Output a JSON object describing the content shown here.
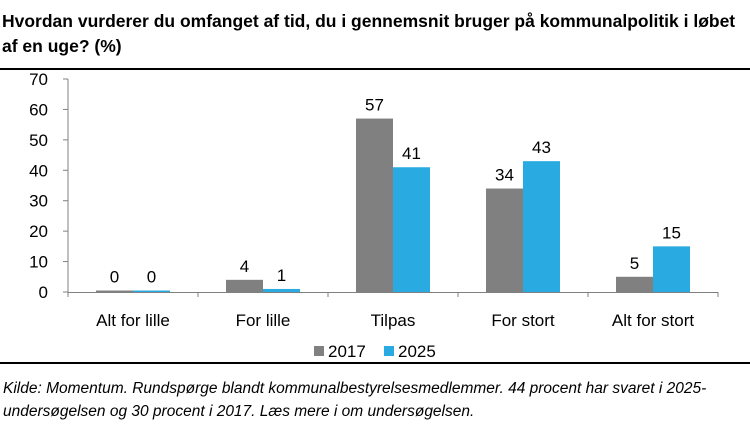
{
  "title": "Hvordan vurderer du omfanget af tid, du i gennemsnit bruger på kommunalpolitik i løbet af en uge? (%)",
  "caption": "Kilde: Momentum. Rundspørge blandt kommunalbestyrelsesmedlemmer. 44 procent har svaret i 2025-undersøgelsen og 30 procent i 2017. Læs mere i om undersøgelsen.",
  "colors": {
    "2017": "#808080",
    "2025": "#29abe2"
  },
  "chart_data": {
    "type": "bar",
    "title": "Hvordan vurderer du omfanget af tid, du i gennemsnit bruger på kommunalpolitik i løbet af en uge? (%)",
    "categories": [
      "Alt for lille",
      "For lille",
      "Tilpas",
      "For stort",
      "Alt for stort"
    ],
    "series": [
      {
        "name": "2017",
        "values": [
          0,
          4,
          57,
          34,
          5
        ]
      },
      {
        "name": "2025",
        "values": [
          0,
          1,
          41,
          43,
          15
        ]
      }
    ],
    "ylim": [
      0,
      70
    ],
    "yticks": [
      0,
      10,
      20,
      30,
      40,
      50,
      60,
      70
    ],
    "xlabel": "",
    "ylabel": "",
    "legend": "bottom-center",
    "grid": false
  }
}
